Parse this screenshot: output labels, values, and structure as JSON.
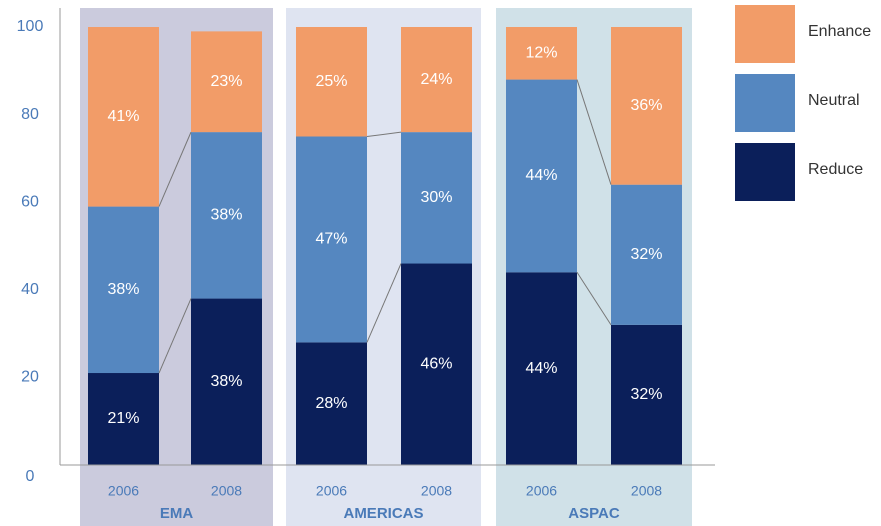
{
  "chart_data": {
    "type": "stacked-bar",
    "groups": [
      "EMA",
      "AMERICAS",
      "ASPAC"
    ],
    "categories": [
      "2006",
      "2008",
      "2006",
      "2008",
      "2006",
      "2008"
    ],
    "series": [
      {
        "name": "Reduce",
        "color": "#0b1f5a",
        "values": [
          21,
          38,
          28,
          46,
          44,
          32
        ],
        "value_labels": [
          "21%",
          "38%",
          "28%",
          "46%",
          "44%",
          "32%"
        ]
      },
      {
        "name": "Neutral",
        "color": "#5587c0",
        "values": [
          38,
          38,
          47,
          30,
          44,
          32
        ],
        "value_labels": [
          "38%",
          "38%",
          "47%",
          "30%",
          "44%",
          "32%"
        ]
      },
      {
        "name": "Enhance",
        "color": "#f29c68",
        "values": [
          41,
          23,
          25,
          24,
          12,
          36
        ],
        "value_labels": [
          "41%",
          "23%",
          "25%",
          "24%",
          "12%",
          "36%"
        ]
      }
    ],
    "ylim": [
      0,
      100
    ],
    "yticks": [
      0,
      20,
      40,
      60,
      80,
      100
    ]
  }
}
